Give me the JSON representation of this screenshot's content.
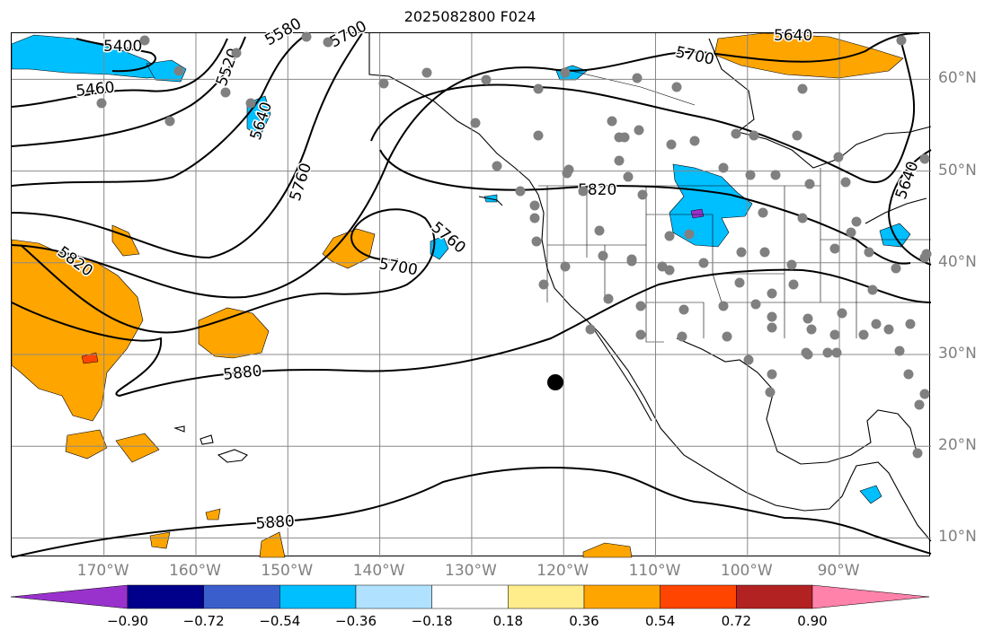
{
  "title": "2025082800 F024",
  "map": {
    "lon_labels": [
      {
        "text": "170°W",
        "lon": -170
      },
      {
        "text": "160°W",
        "lon": -160
      },
      {
        "text": "150°W",
        "lon": -150
      },
      {
        "text": "140°W",
        "lon": -140
      },
      {
        "text": "130°W",
        "lon": -130
      },
      {
        "text": "120°W",
        "lon": -120
      },
      {
        "text": "110°W",
        "lon": -110
      },
      {
        "text": "100°W",
        "lon": -100
      },
      {
        "text": "90°W",
        "lon": -90
      }
    ],
    "lat_labels": [
      {
        "text": "60°N",
        "lat": 60
      },
      {
        "text": "50°N",
        "lat": 50
      },
      {
        "text": "40°N",
        "lat": 40
      },
      {
        "text": "30°N",
        "lat": 30
      },
      {
        "text": "20°N",
        "lat": 20
      },
      {
        "text": "10°N",
        "lat": 10
      }
    ],
    "contour_labels": [
      "5400",
      "5460",
      "5520",
      "5580",
      "5640",
      "5700",
      "5760",
      "5820",
      "5880"
    ],
    "colors": {
      "contour": "#000000",
      "gridline": "#888888",
      "station_dot": "#808080",
      "target_dot": "#000000",
      "land": "#ffffff"
    }
  },
  "colorbar": {
    "ticks": [
      "−0.90",
      "−0.72",
      "−0.54",
      "−0.36",
      "−0.18",
      "0.18",
      "0.36",
      "0.54",
      "0.72",
      "0.90"
    ],
    "colors": [
      "#9932cc",
      "#00008b",
      "#3a5fcd",
      "#00bfff",
      "#b0e2ff",
      "#ffffff",
      "#ffec8b",
      "#ffa500",
      "#ff4500",
      "#b22222",
      "#ff82ab"
    ]
  }
}
